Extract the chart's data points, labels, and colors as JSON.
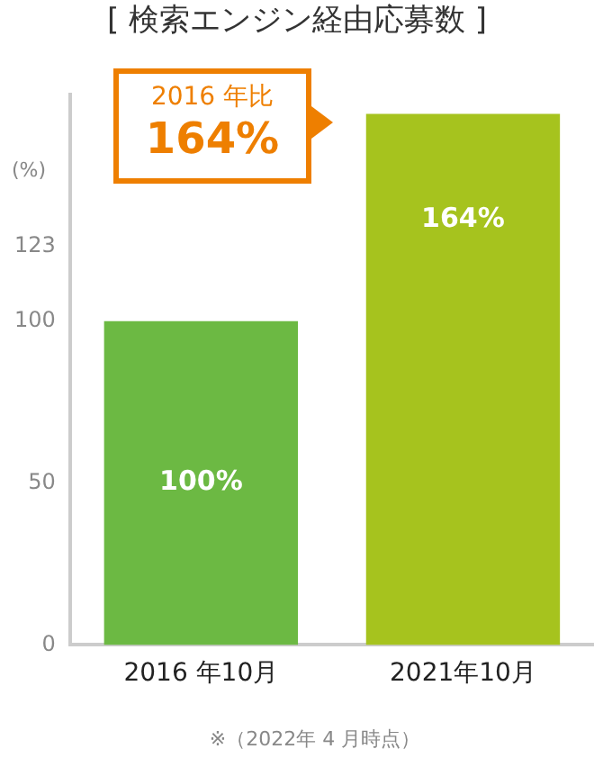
{
  "chart_data": {
    "type": "bar",
    "title": "[ 検索エンジン経由応募数 ]",
    "ylabel": "(%)",
    "categories": [
      "2016 年10月",
      "2021年10月"
    ],
    "values": [
      100,
      164
    ],
    "colors": [
      "#6cb943",
      "#a6c31e"
    ],
    "value_labels": [
      "100%",
      "164%"
    ],
    "ylim": [
      0,
      170
    ],
    "yticks": [
      0,
      50,
      100,
      123
    ],
    "grid": false,
    "legend": false,
    "annotations": [
      "2016 年比\n164%",
      "※（2022年 4 月時点）"
    ]
  }
}
